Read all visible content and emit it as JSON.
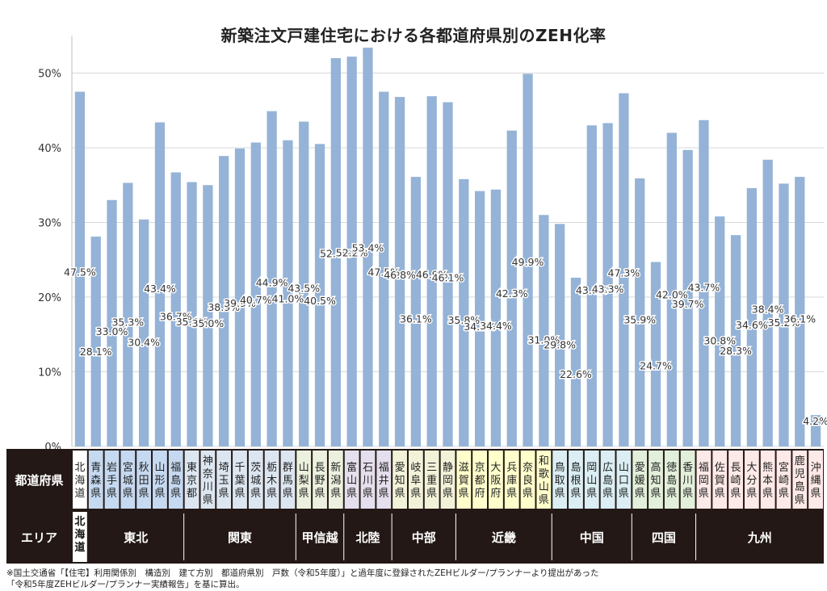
{
  "chart_data": {
    "type": "bar",
    "title": "新築注文戸建住宅における各都道府県別のZEH化率",
    "ylim": [
      0,
      55
    ],
    "yticks": [
      "0%",
      "10%",
      "20%",
      "30%",
      "40%",
      "50%"
    ],
    "bar_color": "#95B3D7",
    "value_unit": "%",
    "row_labels": {
      "pref": "都道府県",
      "area": "エリア"
    },
    "categories": [
      "北海道",
      "青森県",
      "岩手県",
      "宮城県",
      "秋田県",
      "山形県",
      "福島県",
      "東京都",
      "神奈川県",
      "埼玉県",
      "千葉県",
      "茨城県",
      "栃木県",
      "群馬県",
      "山梨県",
      "長野県",
      "新潟県",
      "富山県",
      "石川県",
      "福井県",
      "愛知県",
      "岐阜県",
      "三重県",
      "静岡県",
      "滋賀県",
      "京都府",
      "大阪府",
      "兵庫県",
      "奈良県",
      "和歌山県",
      "鳥取県",
      "島根県",
      "岡山県",
      "広島県",
      "山口県",
      "愛媛県",
      "高知県",
      "徳島県",
      "香川県",
      "福岡県",
      "佐賀県",
      "長崎県",
      "大分県",
      "熊本県",
      "宮崎県",
      "鹿児島県",
      "沖縄県"
    ],
    "values": [
      47.5,
      28.1,
      33.0,
      35.3,
      30.4,
      43.4,
      36.7,
      35.4,
      35.0,
      38.9,
      39.9,
      40.7,
      44.9,
      41.0,
      43.5,
      40.5,
      52.0,
      52.2,
      53.4,
      47.5,
      46.8,
      36.1,
      46.9,
      46.1,
      35.8,
      34.2,
      34.4,
      42.3,
      49.9,
      31.0,
      29.8,
      22.6,
      43.0,
      43.3,
      47.3,
      35.9,
      24.7,
      42.0,
      39.7,
      43.7,
      30.8,
      28.3,
      34.6,
      38.4,
      35.2,
      36.1,
      4.2
    ],
    "areas": [
      {
        "name": "北海道",
        "count": 1,
        "color": "#FFFFFF"
      },
      {
        "name": "東北",
        "count": 6,
        "color": "#C5D9F1"
      },
      {
        "name": "関東",
        "count": 7,
        "color": "#DCE6F1"
      },
      {
        "name": "甲信越",
        "count": 3,
        "color": "#EBF1DE"
      },
      {
        "name": "北陸",
        "count": 3,
        "color": "#E4DFEC"
      },
      {
        "name": "中部",
        "count": 4,
        "color": "#F2F2D9"
      },
      {
        "name": "近畿",
        "count": 6,
        "color": "#FFFFCC"
      },
      {
        "name": "中国",
        "count": 5,
        "color": "#DAEEF3"
      },
      {
        "name": "四国",
        "count": 4,
        "color": "#E2EFDA"
      },
      {
        "name": "九州",
        "count": 8,
        "color": "#FDE9E7"
      }
    ]
  },
  "footnote": {
    "line1": "※国土交通省「【住宅】利用関係別　構造別　建て方別　都道府県別　戸数（令和5年度）」と過年度に登録されたZEHビルダー/プランナーより提出があった",
    "line2": "「令和5年度ZEHビルダー/プランナー実績報告」を基に算出。"
  }
}
